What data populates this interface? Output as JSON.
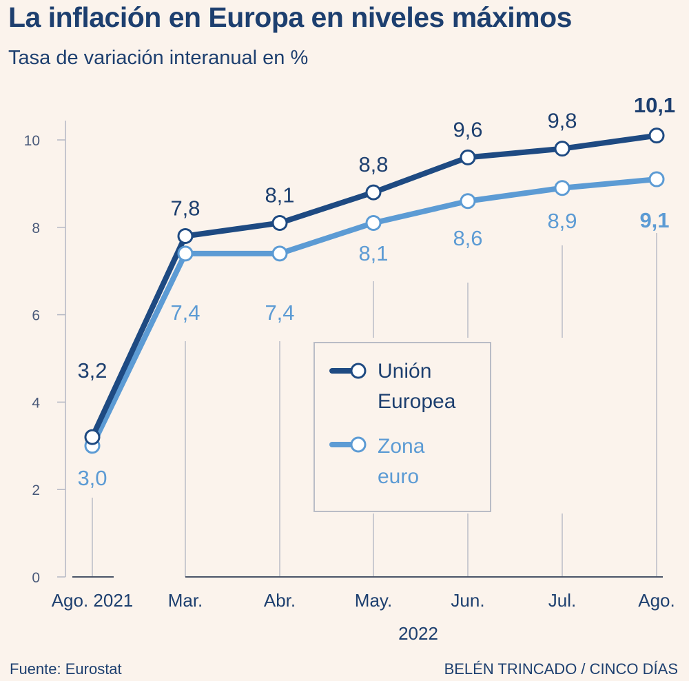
{
  "title": "La inflación en Europa en niveles máximos",
  "subtitle": "Tasa de variación interanual en %",
  "source": "Fuente: Eurostat",
  "credit": "BELÉN TRINCADO / CINCO DÍAS",
  "colors": {
    "ue": "#1e4a82",
    "euro": "#5c9bd4",
    "axis": "#4a5a7a",
    "background": "#fbf3ec"
  },
  "chart_data": {
    "type": "line",
    "categories": [
      "Ago. 2021",
      "Mar.",
      "Abr.",
      "May.",
      "Jun.",
      "Jul.",
      "Ago."
    ],
    "year_label": "2022",
    "ylim": [
      0,
      10
    ],
    "yticks": [
      "0",
      "2",
      "4",
      "6",
      "8",
      "10"
    ],
    "grid": false,
    "legend_position": "center-right",
    "series": [
      {
        "name": "Unión Europea",
        "name_lines": [
          "Unión",
          "Europea"
        ],
        "values": [
          3.2,
          7.8,
          8.1,
          8.8,
          9.6,
          9.8,
          10.1
        ],
        "labels": [
          "3,2",
          "7,8",
          "8,1",
          "8,8",
          "9,6",
          "9,8",
          "10,1"
        ]
      },
      {
        "name": "Zona euro",
        "name_lines": [
          "Zona",
          "euro"
        ],
        "values": [
          3.0,
          7.4,
          7.4,
          8.1,
          8.6,
          8.9,
          9.1
        ],
        "labels": [
          "3,0",
          "7,4",
          "7,4",
          "8,1",
          "8,6",
          "8,9",
          "9,1"
        ]
      }
    ]
  }
}
